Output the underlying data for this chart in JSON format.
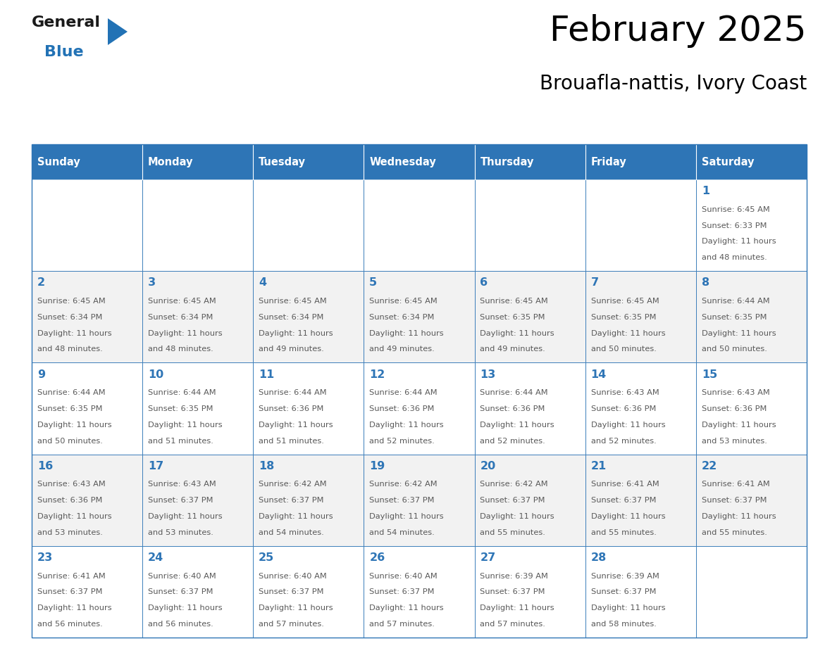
{
  "title": "February 2025",
  "subtitle": "Brouafla-nattis, Ivory Coast",
  "header_bg": "#2E75B6",
  "header_text_color": "#FFFFFF",
  "cell_bg_even": "#FFFFFF",
  "cell_bg_odd": "#F2F2F2",
  "cell_border_color": "#2E75B6",
  "day_number_color": "#2E75B6",
  "info_text_color": "#595959",
  "weekdays": [
    "Sunday",
    "Monday",
    "Tuesday",
    "Wednesday",
    "Thursday",
    "Friday",
    "Saturday"
  ],
  "days_data": [
    {
      "day": 1,
      "col": 6,
      "row": 0,
      "sunrise": "6:45 AM",
      "sunset": "6:33 PM",
      "daylight": "11 hours",
      "minutes": "and 48 minutes."
    },
    {
      "day": 2,
      "col": 0,
      "row": 1,
      "sunrise": "6:45 AM",
      "sunset": "6:34 PM",
      "daylight": "11 hours",
      "minutes": "and 48 minutes."
    },
    {
      "day": 3,
      "col": 1,
      "row": 1,
      "sunrise": "6:45 AM",
      "sunset": "6:34 PM",
      "daylight": "11 hours",
      "minutes": "and 48 minutes."
    },
    {
      "day": 4,
      "col": 2,
      "row": 1,
      "sunrise": "6:45 AM",
      "sunset": "6:34 PM",
      "daylight": "11 hours",
      "minutes": "and 49 minutes."
    },
    {
      "day": 5,
      "col": 3,
      "row": 1,
      "sunrise": "6:45 AM",
      "sunset": "6:34 PM",
      "daylight": "11 hours",
      "minutes": "and 49 minutes."
    },
    {
      "day": 6,
      "col": 4,
      "row": 1,
      "sunrise": "6:45 AM",
      "sunset": "6:35 PM",
      "daylight": "11 hours",
      "minutes": "and 49 minutes."
    },
    {
      "day": 7,
      "col": 5,
      "row": 1,
      "sunrise": "6:45 AM",
      "sunset": "6:35 PM",
      "daylight": "11 hours",
      "minutes": "and 50 minutes."
    },
    {
      "day": 8,
      "col": 6,
      "row": 1,
      "sunrise": "6:44 AM",
      "sunset": "6:35 PM",
      "daylight": "11 hours",
      "minutes": "and 50 minutes."
    },
    {
      "day": 9,
      "col": 0,
      "row": 2,
      "sunrise": "6:44 AM",
      "sunset": "6:35 PM",
      "daylight": "11 hours",
      "minutes": "and 50 minutes."
    },
    {
      "day": 10,
      "col": 1,
      "row": 2,
      "sunrise": "6:44 AM",
      "sunset": "6:35 PM",
      "daylight": "11 hours",
      "minutes": "and 51 minutes."
    },
    {
      "day": 11,
      "col": 2,
      "row": 2,
      "sunrise": "6:44 AM",
      "sunset": "6:36 PM",
      "daylight": "11 hours",
      "minutes": "and 51 minutes."
    },
    {
      "day": 12,
      "col": 3,
      "row": 2,
      "sunrise": "6:44 AM",
      "sunset": "6:36 PM",
      "daylight": "11 hours",
      "minutes": "and 52 minutes."
    },
    {
      "day": 13,
      "col": 4,
      "row": 2,
      "sunrise": "6:44 AM",
      "sunset": "6:36 PM",
      "daylight": "11 hours",
      "minutes": "and 52 minutes."
    },
    {
      "day": 14,
      "col": 5,
      "row": 2,
      "sunrise": "6:43 AM",
      "sunset": "6:36 PM",
      "daylight": "11 hours",
      "minutes": "and 52 minutes."
    },
    {
      "day": 15,
      "col": 6,
      "row": 2,
      "sunrise": "6:43 AM",
      "sunset": "6:36 PM",
      "daylight": "11 hours",
      "minutes": "and 53 minutes."
    },
    {
      "day": 16,
      "col": 0,
      "row": 3,
      "sunrise": "6:43 AM",
      "sunset": "6:36 PM",
      "daylight": "11 hours",
      "minutes": "and 53 minutes."
    },
    {
      "day": 17,
      "col": 1,
      "row": 3,
      "sunrise": "6:43 AM",
      "sunset": "6:37 PM",
      "daylight": "11 hours",
      "minutes": "and 53 minutes."
    },
    {
      "day": 18,
      "col": 2,
      "row": 3,
      "sunrise": "6:42 AM",
      "sunset": "6:37 PM",
      "daylight": "11 hours",
      "minutes": "and 54 minutes."
    },
    {
      "day": 19,
      "col": 3,
      "row": 3,
      "sunrise": "6:42 AM",
      "sunset": "6:37 PM",
      "daylight": "11 hours",
      "minutes": "and 54 minutes."
    },
    {
      "day": 20,
      "col": 4,
      "row": 3,
      "sunrise": "6:42 AM",
      "sunset": "6:37 PM",
      "daylight": "11 hours",
      "minutes": "and 55 minutes."
    },
    {
      "day": 21,
      "col": 5,
      "row": 3,
      "sunrise": "6:41 AM",
      "sunset": "6:37 PM",
      "daylight": "11 hours",
      "minutes": "and 55 minutes."
    },
    {
      "day": 22,
      "col": 6,
      "row": 3,
      "sunrise": "6:41 AM",
      "sunset": "6:37 PM",
      "daylight": "11 hours",
      "minutes": "and 55 minutes."
    },
    {
      "day": 23,
      "col": 0,
      "row": 4,
      "sunrise": "6:41 AM",
      "sunset": "6:37 PM",
      "daylight": "11 hours",
      "minutes": "and 56 minutes."
    },
    {
      "day": 24,
      "col": 1,
      "row": 4,
      "sunrise": "6:40 AM",
      "sunset": "6:37 PM",
      "daylight": "11 hours",
      "minutes": "and 56 minutes."
    },
    {
      "day": 25,
      "col": 2,
      "row": 4,
      "sunrise": "6:40 AM",
      "sunset": "6:37 PM",
      "daylight": "11 hours",
      "minutes": "and 57 minutes."
    },
    {
      "day": 26,
      "col": 3,
      "row": 4,
      "sunrise": "6:40 AM",
      "sunset": "6:37 PM",
      "daylight": "11 hours",
      "minutes": "and 57 minutes."
    },
    {
      "day": 27,
      "col": 4,
      "row": 4,
      "sunrise": "6:39 AM",
      "sunset": "6:37 PM",
      "daylight": "11 hours",
      "minutes": "and 57 minutes."
    },
    {
      "day": 28,
      "col": 5,
      "row": 4,
      "sunrise": "6:39 AM",
      "sunset": "6:37 PM",
      "daylight": "11 hours",
      "minutes": "and 58 minutes."
    }
  ],
  "num_rows": 5,
  "logo_general_color": "#1a1a1a",
  "logo_blue_color": "#2272B5"
}
